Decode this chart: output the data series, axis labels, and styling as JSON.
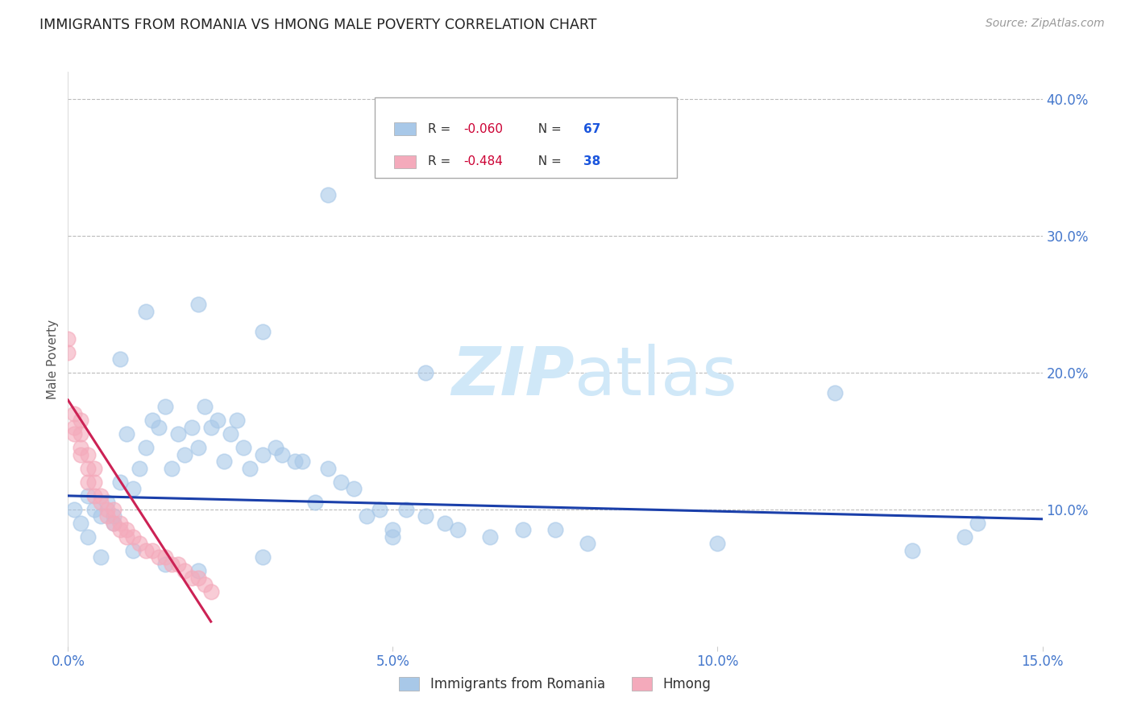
{
  "title": "IMMIGRANTS FROM ROMANIA VS HMONG MALE POVERTY CORRELATION CHART",
  "source": "Source: ZipAtlas.com",
  "ylabel": "Male Poverty",
  "xlim": [
    0.0,
    0.15
  ],
  "ylim": [
    0.0,
    0.42
  ],
  "yticks": [
    0.1,
    0.2,
    0.3,
    0.4
  ],
  "ytick_labels": [
    "10.0%",
    "20.0%",
    "30.0%",
    "40.0%"
  ],
  "xticks": [
    0.0,
    0.05,
    0.1,
    0.15
  ],
  "xtick_labels": [
    "0.0%",
    "5.0%",
    "10.0%",
    "15.0%"
  ],
  "blue_color": "#a8c8e8",
  "pink_color": "#f4aabb",
  "blue_line_color": "#1a3faa",
  "pink_line_color": "#cc2255",
  "axis_color": "#4477cc",
  "grid_color": "#bbbbbb",
  "title_color": "#222222",
  "watermark_color": "#d0e8f8",
  "legend_r_color": "#cc0033",
  "legend_n_color": "#1a55dd",
  "legend_label_blue": "Immigrants from Romania",
  "legend_label_pink": "Hmong",
  "blue_x": [
    0.001,
    0.002,
    0.003,
    0.004,
    0.005,
    0.006,
    0.007,
    0.008,
    0.009,
    0.01,
    0.011,
    0.012,
    0.013,
    0.014,
    0.015,
    0.016,
    0.017,
    0.018,
    0.019,
    0.02,
    0.021,
    0.022,
    0.023,
    0.024,
    0.025,
    0.026,
    0.027,
    0.028,
    0.03,
    0.032,
    0.033,
    0.035,
    0.036,
    0.038,
    0.04,
    0.042,
    0.044,
    0.046,
    0.048,
    0.05,
    0.052,
    0.055,
    0.058,
    0.06,
    0.065,
    0.07,
    0.075,
    0.08,
    0.008,
    0.012,
    0.02,
    0.03,
    0.04,
    0.055,
    0.118,
    0.13,
    0.14,
    0.003,
    0.005,
    0.007,
    0.01,
    0.015,
    0.02,
    0.03,
    0.05,
    0.1,
    0.138
  ],
  "blue_y": [
    0.1,
    0.09,
    0.11,
    0.1,
    0.095,
    0.105,
    0.09,
    0.12,
    0.155,
    0.115,
    0.13,
    0.145,
    0.165,
    0.16,
    0.175,
    0.13,
    0.155,
    0.14,
    0.16,
    0.145,
    0.175,
    0.16,
    0.165,
    0.135,
    0.155,
    0.165,
    0.145,
    0.13,
    0.14,
    0.145,
    0.14,
    0.135,
    0.135,
    0.105,
    0.13,
    0.12,
    0.115,
    0.095,
    0.1,
    0.085,
    0.1,
    0.095,
    0.09,
    0.085,
    0.08,
    0.085,
    0.085,
    0.075,
    0.21,
    0.245,
    0.25,
    0.23,
    0.33,
    0.2,
    0.185,
    0.07,
    0.09,
    0.08,
    0.065,
    0.095,
    0.07,
    0.06,
    0.055,
    0.065,
    0.08,
    0.075,
    0.08
  ],
  "pink_x": [
    0.0,
    0.0,
    0.001,
    0.001,
    0.001,
    0.002,
    0.002,
    0.002,
    0.002,
    0.003,
    0.003,
    0.003,
    0.004,
    0.004,
    0.004,
    0.005,
    0.005,
    0.006,
    0.006,
    0.007,
    0.007,
    0.008,
    0.008,
    0.009,
    0.009,
    0.01,
    0.011,
    0.012,
    0.013,
    0.014,
    0.015,
    0.016,
    0.017,
    0.018,
    0.019,
    0.02,
    0.021,
    0.022
  ],
  "pink_y": [
    0.225,
    0.215,
    0.16,
    0.17,
    0.155,
    0.145,
    0.155,
    0.165,
    0.14,
    0.12,
    0.13,
    0.14,
    0.11,
    0.12,
    0.13,
    0.11,
    0.105,
    0.1,
    0.095,
    0.09,
    0.1,
    0.085,
    0.09,
    0.085,
    0.08,
    0.08,
    0.075,
    0.07,
    0.07,
    0.065,
    0.065,
    0.06,
    0.06,
    0.055,
    0.05,
    0.05,
    0.045,
    0.04
  ],
  "blue_trend_x": [
    0.0,
    0.15
  ],
  "blue_trend_y": [
    0.11,
    0.093
  ],
  "pink_trend_x": [
    0.0,
    0.022
  ],
  "pink_trend_y": [
    0.18,
    0.018
  ]
}
